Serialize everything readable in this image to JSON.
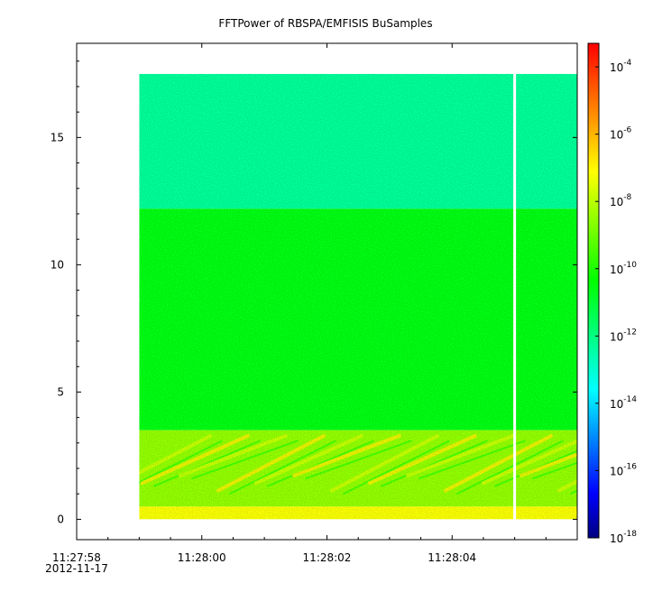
{
  "chart_data": {
    "type": "heatmap",
    "title": "FFTPower of RBSPA/EMFISIS  BuSamples",
    "xlabel": "",
    "ylabel": "",
    "x_axis": {
      "range": [
        "11:27:58",
        "11:28:06"
      ],
      "ticks": [
        {
          "label": "11:27:58",
          "sublabel": "2012-11-17"
        },
        {
          "label": "11:28:00",
          "sublabel": ""
        },
        {
          "label": "11:28:02",
          "sublabel": ""
        },
        {
          "label": "11:28:04",
          "sublabel": ""
        }
      ]
    },
    "y_axis": {
      "range": [
        -0.8,
        18.7
      ],
      "ticks": [
        0,
        5,
        10,
        15
      ]
    },
    "data_extent": {
      "x_start": "11:27:59.0",
      "x_end": "11:28:06",
      "y_min": 0,
      "y_max": 17.5
    },
    "gaps": [
      {
        "x": "11:28:05.0"
      }
    ],
    "bands": [
      {
        "y_range": [
          12.2,
          17.5
        ],
        "log10_power": -12.3
      },
      {
        "y_range": [
          3.5,
          12.2
        ],
        "log10_power": -10.6
      },
      {
        "y_range": [
          0.5,
          3.5
        ],
        "log10_power": -8.5,
        "feature": "rising chorus-like striations"
      },
      {
        "y_range": [
          0,
          0.5
        ],
        "log10_power": -7.2
      }
    ],
    "colorbar": {
      "scale": "log",
      "range_log10": [
        -18,
        -3.3
      ],
      "tick_exponents": [
        -18,
        -16,
        -14,
        -12,
        -10,
        -8,
        -6,
        -4
      ],
      "tick_base": "10",
      "colormap": [
        "#00007f",
        "#0000ff",
        "#00ffff",
        "#00ff00",
        "#ffff00",
        "#ff0000"
      ]
    }
  }
}
